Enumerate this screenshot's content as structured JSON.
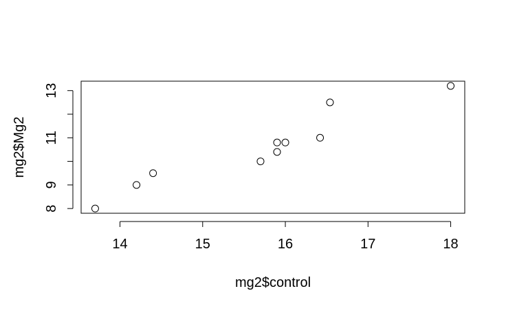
{
  "chart_data": {
    "type": "scatter",
    "title": "",
    "xlabel": "mg2$control",
    "ylabel": "mg2$Mg2",
    "xlim": [
      13.53,
      18.17
    ],
    "ylim": [
      7.8,
      13.4
    ],
    "x_ticks": [
      14,
      15,
      16,
      17,
      18
    ],
    "x_tick_labels": [
      "14",
      "15",
      "16",
      "17",
      "18"
    ],
    "y_ticks": [
      8,
      9,
      10,
      11,
      12,
      13
    ],
    "y_tick_labels": [
      "8",
      "9",
      "",
      "11",
      "",
      "13"
    ],
    "grid": false,
    "marker": "open-circle",
    "points": [
      {
        "x": 13.7,
        "y": 8.0
      },
      {
        "x": 14.2,
        "y": 9.0
      },
      {
        "x": 14.4,
        "y": 9.5
      },
      {
        "x": 15.7,
        "y": 10.0
      },
      {
        "x": 15.9,
        "y": 10.4
      },
      {
        "x": 15.9,
        "y": 10.8
      },
      {
        "x": 16.0,
        "y": 10.8
      },
      {
        "x": 16.42,
        "y": 11.0
      },
      {
        "x": 16.54,
        "y": 12.5
      },
      {
        "x": 18.0,
        "y": 13.2
      }
    ]
  }
}
